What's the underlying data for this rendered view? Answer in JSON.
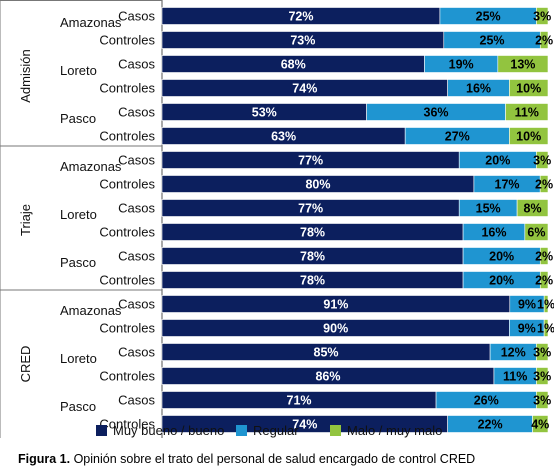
{
  "caption": {
    "label": "Figura 1.",
    "text": "Opinión sobre el trato del personal de salud encargado de control CRED"
  },
  "colors": {
    "good": "#0c1f5e",
    "regular": "#1f95d1",
    "bad": "#92c43f",
    "text_on_dark": "#ffffff",
    "text_on_light": "#000000"
  },
  "chart_data": {
    "type": "bar",
    "orientation": "horizontal",
    "stacked": true,
    "percent": true,
    "xlim": [
      0,
      100
    ],
    "legend": {
      "position": "bottom"
    },
    "series": [
      {
        "name": "Muy bueno / bueno",
        "color": "#0c1f5e"
      },
      {
        "name": "Regular",
        "color": "#1f95d1"
      },
      {
        "name": "Malo / muy malo",
        "color": "#92c43f"
      }
    ],
    "groups": [
      {
        "name": "Admisión",
        "regions": [
          {
            "name": "Amazonas",
            "rows": [
              {
                "label": "Casos",
                "values": [
                  72,
                  25,
                  3
                ]
              },
              {
                "label": "Controles",
                "values": [
                  73,
                  25,
                  2
                ]
              }
            ]
          },
          {
            "name": "Loreto",
            "rows": [
              {
                "label": "Casos",
                "values": [
                  68,
                  19,
                  13
                ]
              },
              {
                "label": "Controles",
                "values": [
                  74,
                  16,
                  10
                ]
              }
            ]
          },
          {
            "name": "Pasco",
            "rows": [
              {
                "label": "Casos",
                "values": [
                  53,
                  36,
                  11
                ]
              },
              {
                "label": "Controles",
                "values": [
                  63,
                  27,
                  10
                ]
              }
            ]
          }
        ]
      },
      {
        "name": "Triaje",
        "regions": [
          {
            "name": "Amazonas",
            "rows": [
              {
                "label": "Casos",
                "values": [
                  77,
                  20,
                  3
                ]
              },
              {
                "label": "Controles",
                "values": [
                  80,
                  17,
                  2
                ]
              }
            ]
          },
          {
            "name": "Loreto",
            "rows": [
              {
                "label": "Casos",
                "values": [
                  77,
                  15,
                  8
                ]
              },
              {
                "label": "Controles",
                "values": [
                  78,
                  16,
                  6
                ]
              }
            ]
          },
          {
            "name": "Pasco",
            "rows": [
              {
                "label": "Casos",
                "values": [
                  78,
                  20,
                  2
                ]
              },
              {
                "label": "Controles",
                "values": [
                  78,
                  20,
                  2
                ]
              }
            ]
          }
        ]
      },
      {
        "name": "CRED",
        "regions": [
          {
            "name": "Amazonas",
            "rows": [
              {
                "label": "Casos",
                "values": [
                  91,
                  9,
                  1
                ]
              },
              {
                "label": "Controles",
                "values": [
                  90,
                  9,
                  1
                ]
              }
            ]
          },
          {
            "name": "Loreto",
            "rows": [
              {
                "label": "Casos",
                "values": [
                  85,
                  12,
                  3
                ]
              },
              {
                "label": "Controles",
                "values": [
                  86,
                  11,
                  3
                ]
              }
            ]
          },
          {
            "name": "Pasco",
            "rows": [
              {
                "label": "Casos",
                "values": [
                  71,
                  26,
                  3
                ]
              },
              {
                "label": "Controles",
                "values": [
                  74,
                  22,
                  4
                ]
              }
            ]
          }
        ]
      }
    ]
  }
}
